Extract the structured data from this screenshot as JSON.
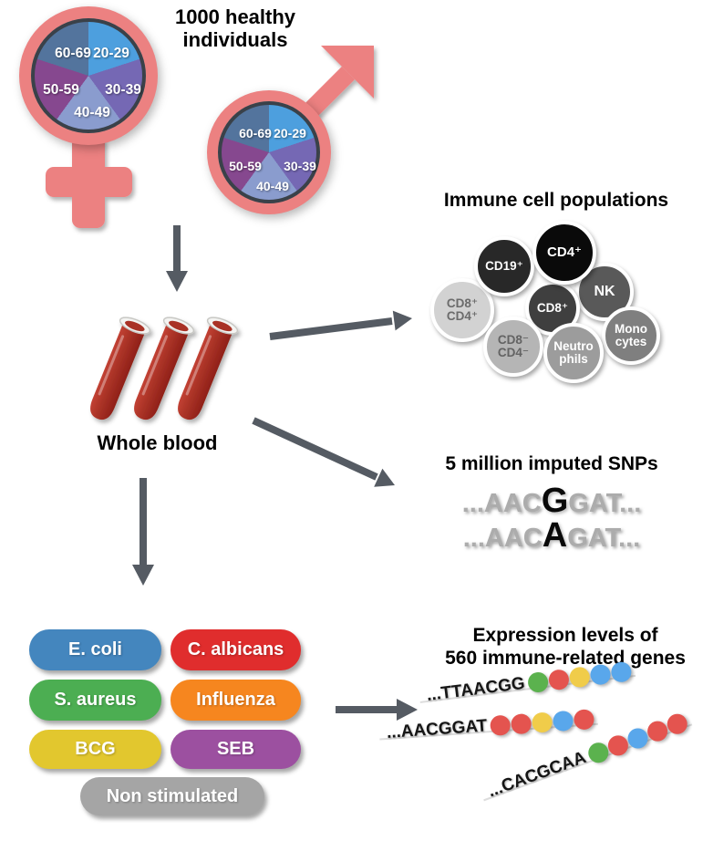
{
  "title": "1000 healthy individuals",
  "pie": {
    "labels": [
      "20-29",
      "30-39",
      "40-49",
      "50-59",
      "60-69"
    ],
    "colors": {
      "20-29": "#4D9FDE",
      "30-39": "#7568B4",
      "40-49": "#8A9CCE",
      "50-59": "#86488F",
      "60-69": "#53749D",
      "border": "#3A4149",
      "symbol_pink": "#EC8181"
    }
  },
  "whole_blood": {
    "label": "Whole blood",
    "tube_color": "#A93226"
  },
  "arrows": {
    "color": "#555B63"
  },
  "cells": {
    "title": "Immune cell populations",
    "items": [
      {
        "line1": "NK",
        "line2": "",
        "color": "#595959"
      },
      {
        "line1": "CD8⁺",
        "line2": "CD4⁺",
        "color": "#D2D2D2"
      },
      {
        "line1": "CD8⁺",
        "line2": "",
        "color": "#3F3F3F"
      },
      {
        "line1": "CD19⁺",
        "line2": "",
        "color": "#282828"
      },
      {
        "line1": "CD4⁺",
        "line2": "",
        "color": "#0A0A0A"
      },
      {
        "line1": "Mono",
        "line2": "cytes",
        "color": "#7F7F7F"
      },
      {
        "line1": "CD8⁻",
        "line2": "CD4⁻",
        "color": "#B5B5B5"
      },
      {
        "line1": "Neutro",
        "line2": "phils",
        "color": "#9C9C9C"
      }
    ]
  },
  "snps": {
    "title": "5 million imputed SNPs",
    "line1": {
      "pre": "...AAC",
      "snp": "G",
      "post": "GAT..."
    },
    "line2": {
      "pre": "...AAC",
      "snp": "A",
      "post": "GAT..."
    }
  },
  "stimuli": {
    "items": [
      {
        "label": "E. coli",
        "color": "#4486BE"
      },
      {
        "label": "C. albicans",
        "color": "#E02D2D"
      },
      {
        "label": "S. aureus",
        "color": "#4CAE52"
      },
      {
        "label": "Influenza",
        "color": "#F6861F"
      },
      {
        "label": "BCG",
        "color": "#E2C72E"
      },
      {
        "label": "SEB",
        "color": "#9C50A0"
      },
      {
        "label": "Non stimulated",
        "color": "#A5A5A5"
      }
    ]
  },
  "expression": {
    "title_line1": "Expression levels of",
    "title_line2": "560 immune-related genes",
    "dot_colors": {
      "green": "#5BB24E",
      "red": "#E4544F",
      "yellow": "#F0CC4A",
      "blue": "#59A7EB"
    },
    "rows": [
      {
        "seq": "...TTAACGG",
        "dots": [
          "green",
          "red",
          "yellow",
          "blue",
          "blue"
        ]
      },
      {
        "seq": "...AACGGAT",
        "dots": [
          "red",
          "red",
          "yellow",
          "blue",
          "red"
        ]
      },
      {
        "seq": "...CACGCAA",
        "dots": [
          "green",
          "red",
          "blue",
          "red",
          "red"
        ]
      }
    ]
  }
}
